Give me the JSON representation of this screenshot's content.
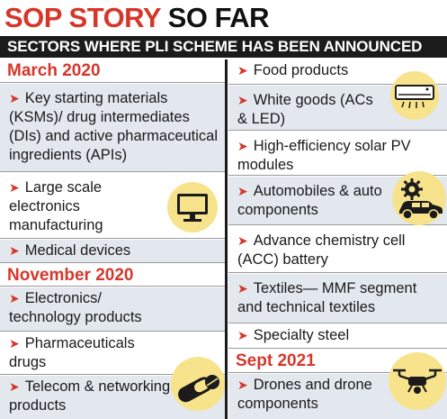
{
  "header": {
    "title_red": "SOP STORY",
    "title_black": "SO FAR",
    "subtitle": "SECTORS WHERE PLI SCHEME HAS BEEN ANNOUNCED"
  },
  "left": {
    "march": {
      "heading": "March 2020",
      "items": [
        "Key starting materials (KSMs)/ drug intermediates (DIs) and active pharmaceutical ingredients (APIs)",
        "Large scale electronics manufacturing",
        "Medical devices"
      ]
    },
    "november": {
      "heading": "November 2020",
      "items": [
        "Electronics/ technology products",
        "Pharmaceuticals drugs",
        "Telecom & networking products"
      ]
    }
  },
  "right": {
    "items": [
      "Food products",
      "White goods (ACs & LED)",
      "High-efficiency solar PV modules",
      "Automobiles & auto components",
      "Advance chemistry cell (ACC) battery",
      "Textiles— MMF segment and technical textiles",
      "Specialty steel"
    ],
    "sept": {
      "heading": "Sept 2021",
      "items": [
        "Drones and drone components"
      ]
    }
  },
  "icons": {
    "monitor": "monitor-icon",
    "pill": "pill-icon",
    "air_conditioner": "air-conditioner-icon",
    "gear_car": "gear-car-icon",
    "drone": "drone-icon"
  },
  "colors": {
    "accent_red": "#d5372b",
    "band_black": "#1b1b1b",
    "row_shade": "#e3e8ef",
    "icon_bg": "#f7e38b"
  }
}
